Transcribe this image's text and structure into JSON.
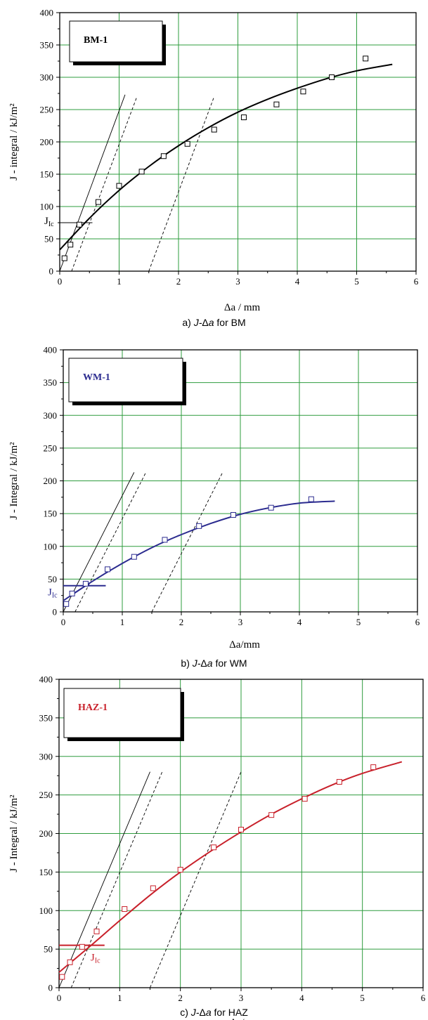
{
  "chart_data": [
    {
      "type": "scatter",
      "legend": "BM-1",
      "color": "#000000",
      "xlabel": "Δa / mm",
      "ylabel": "J - integral / kJ/m²",
      "xlim": [
        0,
        6
      ],
      "ylim": [
        0,
        400
      ],
      "x_ticks": [
        0,
        1,
        2,
        3,
        4,
        5,
        6
      ],
      "y_ticks": [
        0,
        50,
        100,
        150,
        200,
        250,
        300,
        350,
        400
      ],
      "grid": true,
      "jic_label": "J_Ic",
      "jic_value": 75,
      "jic_line_xmax": 0.55,
      "points": [
        [
          0.08,
          20
        ],
        [
          0.18,
          41
        ],
        [
          0.33,
          72
        ],
        [
          0.65,
          107
        ],
        [
          1.0,
          132
        ],
        [
          1.38,
          154
        ],
        [
          1.75,
          178
        ],
        [
          2.15,
          197
        ],
        [
          2.6,
          219
        ],
        [
          3.1,
          238
        ],
        [
          3.65,
          258
        ],
        [
          4.1,
          278
        ],
        [
          4.58,
          300
        ],
        [
          5.15,
          329
        ]
      ],
      "fit_curve": [
        [
          0.0,
          33
        ],
        [
          0.5,
          82
        ],
        [
          1.0,
          125
        ],
        [
          1.5,
          162
        ],
        [
          2.0,
          194
        ],
        [
          2.5,
          222
        ],
        [
          3.0,
          246
        ],
        [
          3.5,
          266
        ],
        [
          4.0,
          283
        ],
        [
          4.5,
          298
        ],
        [
          5.0,
          310
        ],
        [
          5.6,
          320
        ]
      ],
      "blunting_line": [
        [
          0.0,
          0
        ],
        [
          1.1,
          273
        ]
      ],
      "offset_lines": [
        [
          [
            0.2,
            0
          ],
          [
            1.3,
            270
          ]
        ],
        [
          [
            1.5,
            0
          ],
          [
            2.6,
            270
          ]
        ]
      ],
      "caption_prefix": "a) ",
      "caption_italic": "J-",
      "caption_delta": "Δ",
      "caption_italic2": "a",
      "caption_suffix": " for BM"
    },
    {
      "type": "scatter",
      "legend": "WM-1",
      "color": "#2b2b8f",
      "xlabel": "Δa/mm",
      "ylabel": "J - Integral / kJ/m²",
      "xlim": [
        0,
        6
      ],
      "ylim": [
        0,
        400
      ],
      "x_ticks": [
        0,
        1,
        2,
        3,
        4,
        5,
        6
      ],
      "y_ticks": [
        0,
        50,
        100,
        150,
        200,
        250,
        300,
        350,
        400
      ],
      "grid": true,
      "jic_label": "J_Ic",
      "jic_value": 40,
      "jic_line_xmax": 0.72,
      "points": [
        [
          0.05,
          12
        ],
        [
          0.15,
          28
        ],
        [
          0.38,
          43
        ],
        [
          0.75,
          65
        ],
        [
          1.2,
          84
        ],
        [
          1.72,
          110
        ],
        [
          2.3,
          131
        ],
        [
          2.88,
          148
        ],
        [
          3.52,
          159
        ],
        [
          4.2,
          172
        ]
      ],
      "fit_curve": [
        [
          0.0,
          17
        ],
        [
          0.5,
          47
        ],
        [
          1.0,
          74
        ],
        [
          1.5,
          98
        ],
        [
          2.0,
          118
        ],
        [
          2.5,
          135
        ],
        [
          3.0,
          149
        ],
        [
          3.5,
          159
        ],
        [
          4.0,
          166
        ],
        [
          4.6,
          169
        ]
      ],
      "blunting_line": [
        [
          0.0,
          0
        ],
        [
          1.2,
          213
        ]
      ],
      "offset_lines": [
        [
          [
            0.2,
            0
          ],
          [
            1.4,
            213
          ]
        ],
        [
          [
            1.5,
            0
          ],
          [
            2.7,
            213
          ]
        ]
      ],
      "caption_prefix": "b) ",
      "caption_italic": "J-",
      "caption_delta": "Δ",
      "caption_italic2": "a",
      "caption_suffix": " for WM"
    },
    {
      "type": "scatter",
      "legend": "HAZ-1",
      "color": "#c8202a",
      "xlabel": "Δa/mm",
      "ylabel": "J - Integral / kJ/m²",
      "xlim": [
        0,
        6
      ],
      "ylim": [
        0,
        400
      ],
      "x_ticks": [
        0,
        1,
        2,
        3,
        4,
        5,
        6
      ],
      "y_ticks": [
        0,
        50,
        100,
        150,
        200,
        250,
        300,
        350,
        400
      ],
      "grid": true,
      "jic_label": "J_Ic",
      "jic_value": 55,
      "jic_line_xmax": 0.75,
      "points": [
        [
          0.05,
          14
        ],
        [
          0.18,
          33
        ],
        [
          0.38,
          53
        ],
        [
          0.62,
          73
        ],
        [
          1.08,
          102
        ],
        [
          1.55,
          129
        ],
        [
          2.0,
          153
        ],
        [
          2.55,
          182
        ],
        [
          3.0,
          205
        ],
        [
          3.5,
          224
        ],
        [
          4.05,
          245
        ],
        [
          4.62,
          267
        ],
        [
          5.18,
          286
        ]
      ],
      "fit_curve": [
        [
          0.0,
          20
        ],
        [
          0.5,
          53
        ],
        [
          1.0,
          87
        ],
        [
          1.5,
          120
        ],
        [
          2.0,
          150
        ],
        [
          2.5,
          177
        ],
        [
          3.0,
          202
        ],
        [
          3.5,
          225
        ],
        [
          4.0,
          245
        ],
        [
          4.5,
          263
        ],
        [
          5.0,
          278
        ],
        [
          5.65,
          293
        ]
      ],
      "blunting_line": [
        [
          0.0,
          0
        ],
        [
          1.5,
          280
        ]
      ],
      "offset_lines": [
        [
          [
            0.2,
            0
          ],
          [
            1.7,
            280
          ]
        ],
        [
          [
            1.5,
            0
          ],
          [
            3.0,
            280
          ]
        ]
      ],
      "caption_prefix": "c) ",
      "caption_italic": "J-",
      "caption_delta": "Δ",
      "caption_italic2": "a",
      "caption_suffix": " for HAZ"
    }
  ]
}
